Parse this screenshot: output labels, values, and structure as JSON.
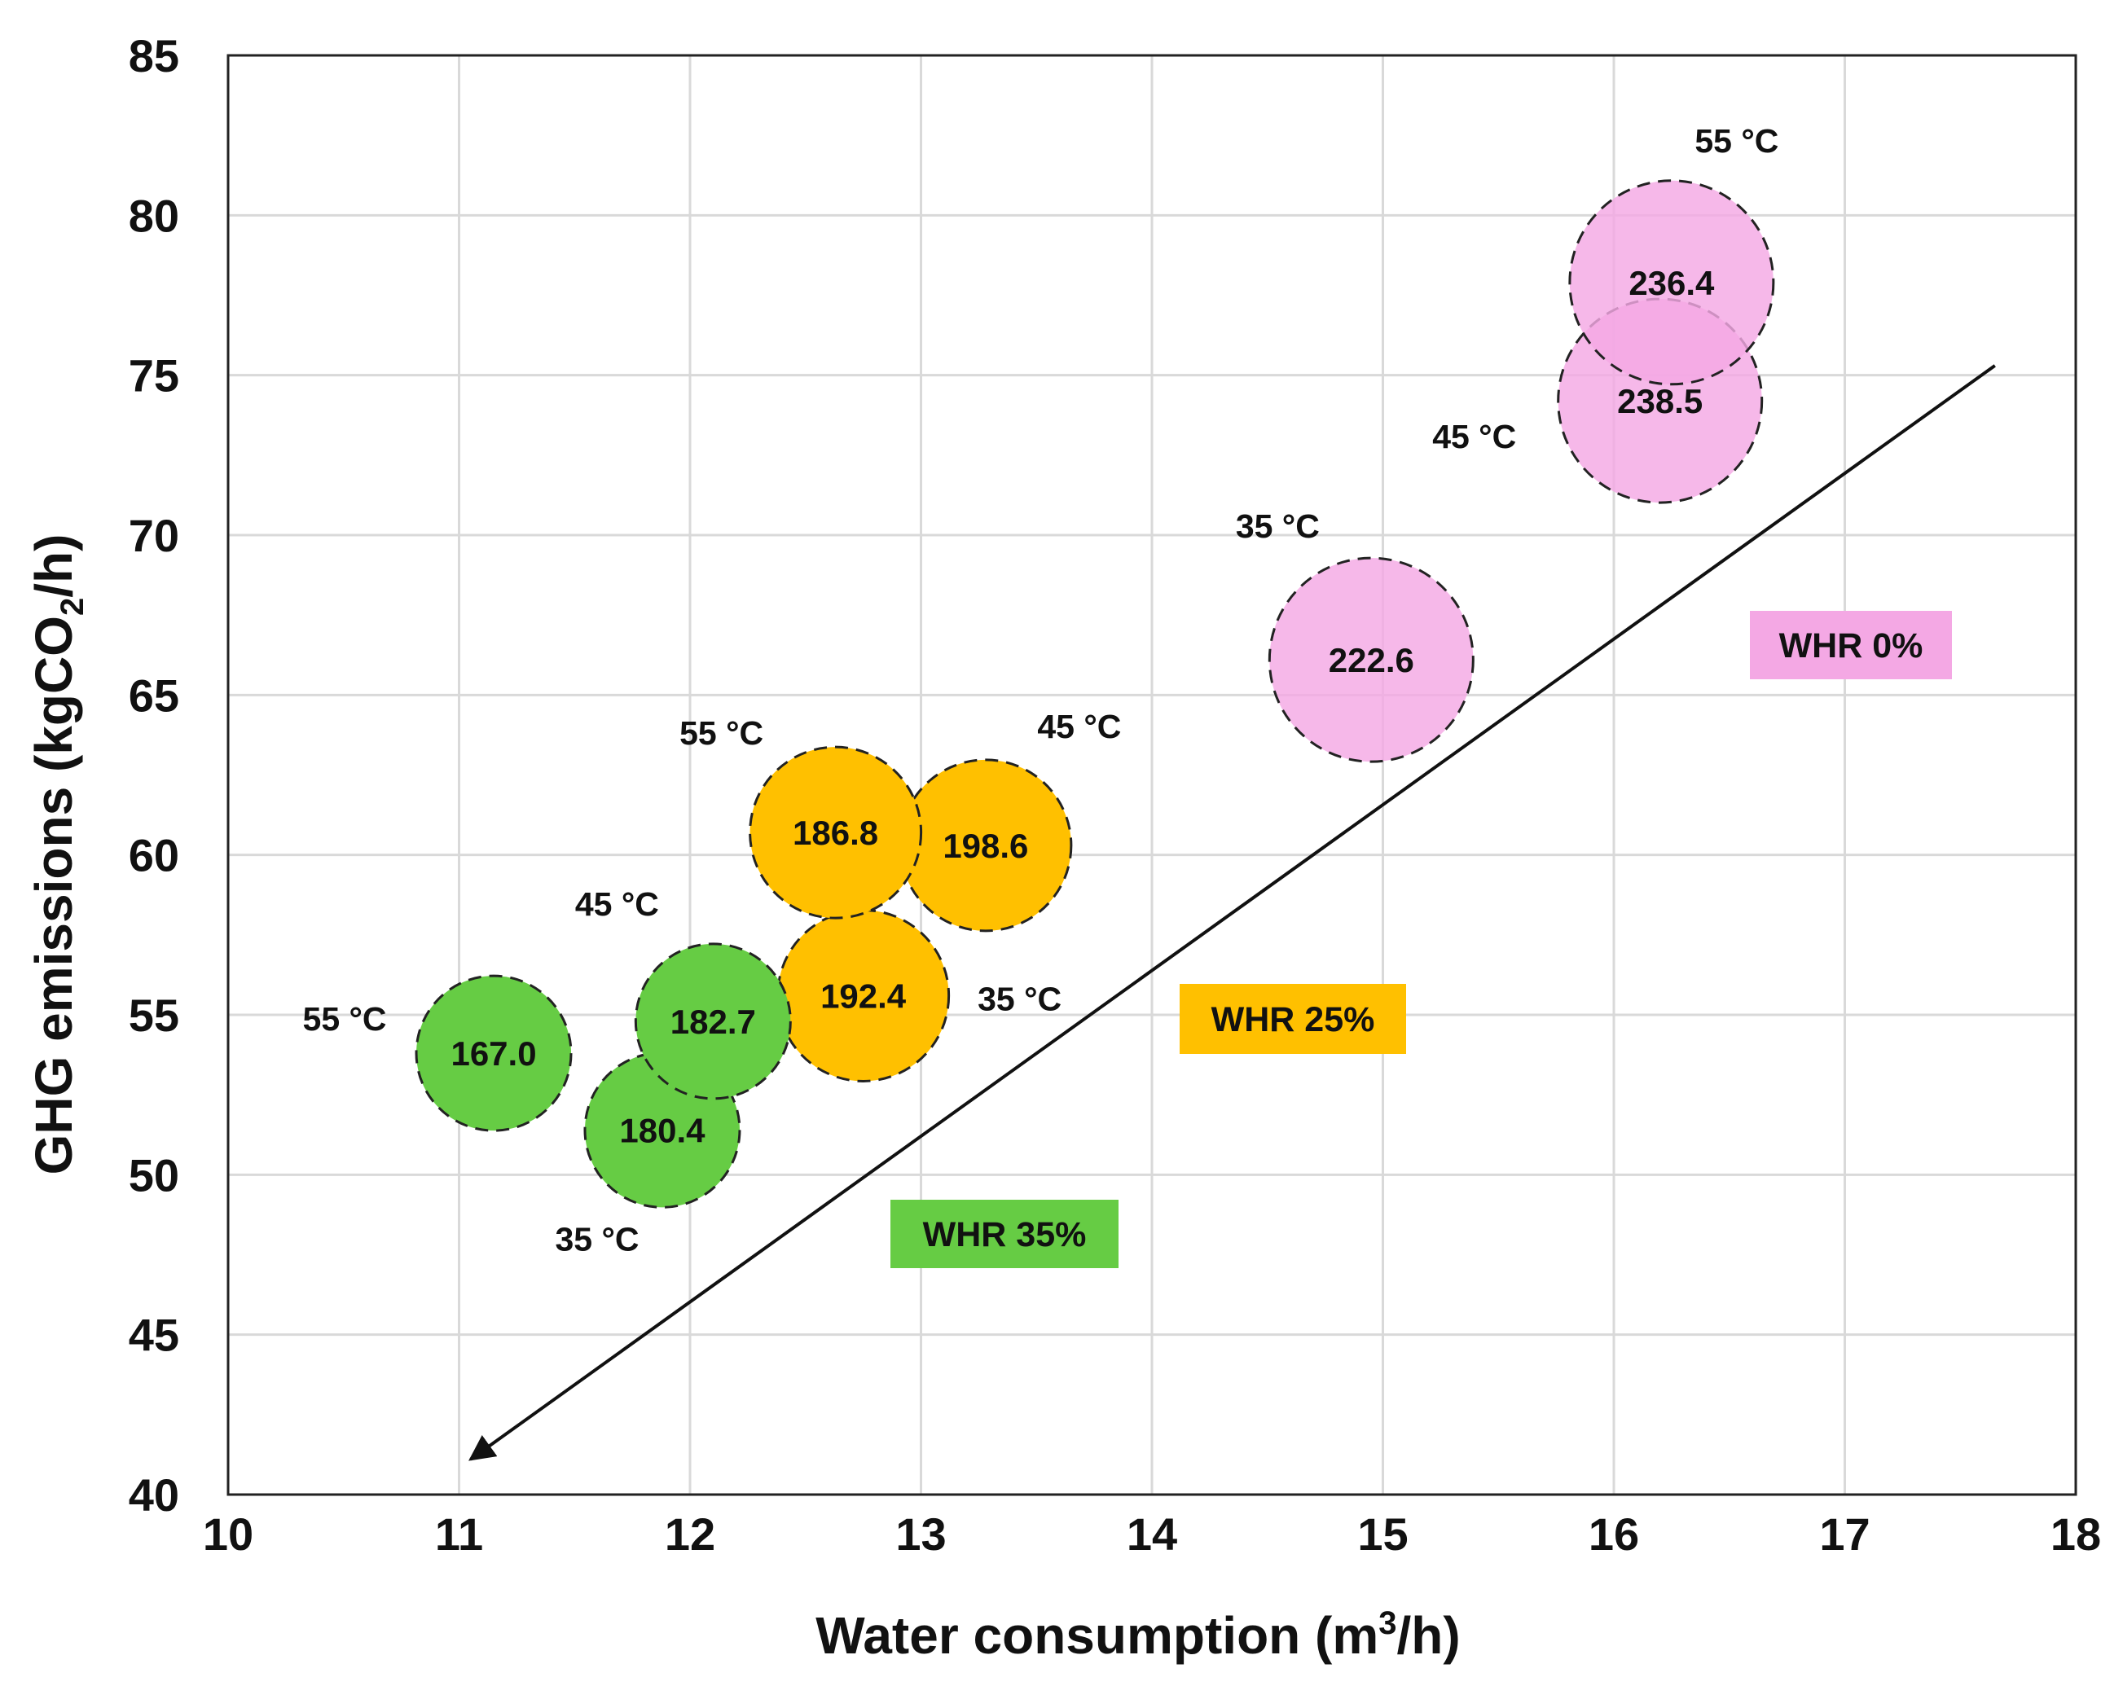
{
  "chart_data": {
    "type": "scatter",
    "title": "",
    "xlabel": "Water consumption (m³/h)",
    "xlabel_parts": {
      "main": "Water consumption (m",
      "sup": "3",
      "end": "/h)"
    },
    "ylabel": "GHG emissions (kgCO₂/h)",
    "ylabel_parts": {
      "main": "GHG emissions (kgCO",
      "sub": "2",
      "end": "/h)"
    },
    "xlim": [
      10,
      18
    ],
    "ylim": [
      40,
      85
    ],
    "xticks": [
      "10",
      "11",
      "12",
      "13",
      "14",
      "15",
      "16",
      "17",
      "18"
    ],
    "yticks": [
      "40",
      "45",
      "50",
      "55",
      "60",
      "65",
      "70",
      "75",
      "80",
      "85"
    ],
    "grid": true,
    "series": [
      {
        "name": "WHR 0%",
        "color": "#f4a8e4",
        "points": [
          {
            "x": 14.95,
            "y": 66.1,
            "value": "222.6",
            "temp": "35 °C"
          },
          {
            "x": 16.2,
            "y": 74.2,
            "value": "238.5",
            "temp": "45 °C"
          },
          {
            "x": 16.25,
            "y": 77.9,
            "value": "236.4",
            "temp": "55 °C"
          }
        ]
      },
      {
        "name": "WHR 25%",
        "color": "#ffc000",
        "points": [
          {
            "x": 12.75,
            "y": 55.6,
            "value": "192.4",
            "temp": "35 °C"
          },
          {
            "x": 13.28,
            "y": 60.3,
            "value": "198.6",
            "temp": "45 °C"
          },
          {
            "x": 12.63,
            "y": 60.7,
            "value": "186.8",
            "temp": "55 °C"
          }
        ]
      },
      {
        "name": "WHR 35%",
        "color": "#66cc44",
        "points": [
          {
            "x": 11.88,
            "y": 51.4,
            "value": "180.4",
            "temp": "35 °C"
          },
          {
            "x": 12.1,
            "y": 54.8,
            "value": "182.7",
            "temp": "45 °C"
          },
          {
            "x": 11.15,
            "y": 53.8,
            "value": "167.0",
            "temp": "55 °C"
          }
        ]
      }
    ],
    "trend_arrow": {
      "from": [
        17.65,
        75.3
      ],
      "to": [
        11.05,
        41.1
      ]
    },
    "group_labels": [
      {
        "text": "WHR 0%",
        "color": "#f4a8e4"
      },
      {
        "text": "WHR 25%",
        "color": "#ffc000"
      },
      {
        "text": "WHR 35%",
        "color": "#66cc44"
      }
    ]
  }
}
